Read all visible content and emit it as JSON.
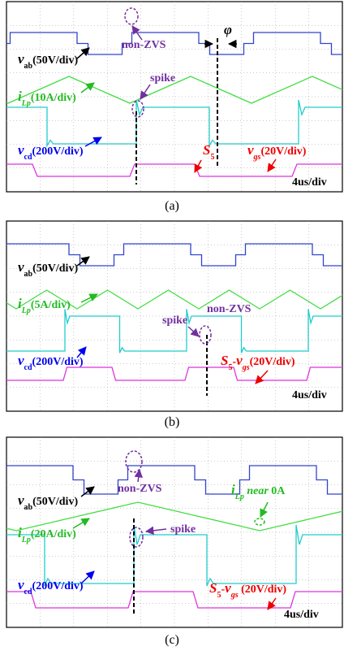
{
  "panels": [
    {
      "caption": "(a)",
      "scale": "4us/div",
      "labels": [
        {
          "color": "#7030a0",
          "parts": [
            {
              "text": "non-ZVS"
            }
          ]
        },
        {
          "color": "#000000",
          "parts": [
            {
              "text": "φ",
              "italic": true
            }
          ]
        },
        {
          "color": "#000000",
          "parts": [
            {
              "text": "v",
              "italic": true
            },
            {
              "text": "ab",
              "sub": true
            },
            {
              "text": "(50V/div)"
            }
          ]
        },
        {
          "color": "#22bb22",
          "parts": [
            {
              "text": "i",
              "italic": true
            },
            {
              "text": "Lp",
              "sub": true,
              "italic": true
            },
            {
              "text": "(10A/div)"
            }
          ]
        },
        {
          "color": "#7030a0",
          "parts": [
            {
              "text": "spike"
            }
          ]
        },
        {
          "color": "#0000ee",
          "parts": [
            {
              "text": "v",
              "italic": true
            },
            {
              "text": "cd",
              "sub": true
            },
            {
              "text": "(200V/div)"
            }
          ]
        },
        {
          "color": "#ee0000",
          "parts": [
            {
              "text": "S",
              "italic": true
            },
            {
              "text": "5",
              "sub": true
            }
          ]
        },
        {
          "color": "#ee0000",
          "parts": [
            {
              "text": "v",
              "italic": true
            },
            {
              "text": "gs",
              "sub": true,
              "italic": true
            },
            {
              "text": "(20V/div)"
            }
          ]
        }
      ]
    },
    {
      "caption": "(b)",
      "scale": "4us/div",
      "labels": [
        {
          "color": "#000000",
          "parts": [
            {
              "text": "v",
              "italic": true
            },
            {
              "text": "ab",
              "sub": true
            },
            {
              "text": "(50V/div)"
            }
          ]
        },
        {
          "color": "#22bb22",
          "parts": [
            {
              "text": "i",
              "italic": true
            },
            {
              "text": "Lp",
              "sub": true,
              "italic": true
            },
            {
              "text": "(5A/div)"
            }
          ]
        },
        {
          "color": "#7030a0",
          "parts": [
            {
              "text": "spike"
            }
          ]
        },
        {
          "color": "#7030a0",
          "parts": [
            {
              "text": "non-ZVS"
            }
          ]
        },
        {
          "color": "#0000ee",
          "parts": [
            {
              "text": "v",
              "italic": true
            },
            {
              "text": "cd",
              "sub": true
            },
            {
              "text": "(200V/div)"
            }
          ]
        },
        {
          "color": "#ee0000",
          "parts": [
            {
              "text": "S",
              "italic": true
            },
            {
              "text": "5",
              "sub": true
            },
            {
              "text": "-"
            },
            {
              "text": "v",
              "italic": true
            },
            {
              "text": "gs",
              "sub": true,
              "italic": true
            },
            {
              "text": "(20V/div)"
            }
          ]
        }
      ]
    },
    {
      "caption": "(c)",
      "scale": "4us/div",
      "labels": [
        {
          "color": "#000000",
          "parts": [
            {
              "text": "v",
              "italic": true
            },
            {
              "text": "ab",
              "sub": true
            },
            {
              "text": "(50V/div)"
            }
          ]
        },
        {
          "color": "#7030a0",
          "parts": [
            {
              "text": "non-ZVS"
            }
          ]
        },
        {
          "color": "#22bb22",
          "parts": [
            {
              "text": "i",
              "italic": true
            },
            {
              "text": "Lp",
              "sub": true,
              "italic": true
            },
            {
              "text": " near ",
              "italic": true
            },
            {
              "text": "0A"
            }
          ]
        },
        {
          "color": "#22bb22",
          "parts": [
            {
              "text": "i",
              "italic": true
            },
            {
              "text": "Lp",
              "sub": true,
              "italic": true
            },
            {
              "text": "(20A/div)"
            }
          ]
        },
        {
          "color": "#7030a0",
          "parts": [
            {
              "text": "spike"
            }
          ]
        },
        {
          "color": "#0000ee",
          "parts": [
            {
              "text": "v",
              "italic": true
            },
            {
              "text": "cd",
              "sub": true
            },
            {
              "text": "(200V/div)"
            }
          ]
        },
        {
          "color": "#ee0000",
          "parts": [
            {
              "text": "S",
              "italic": true
            },
            {
              "text": "5",
              "sub": true
            },
            {
              "text": "-"
            },
            {
              "text": "v",
              "italic": true
            },
            {
              "text": "gs",
              "sub": true,
              "italic": true
            },
            {
              "text": " (20V/div)"
            }
          ]
        }
      ]
    }
  ]
}
